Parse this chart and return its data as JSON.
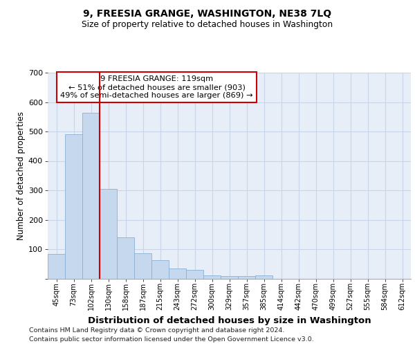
{
  "title": "9, FREESIA GRANGE, WASHINGTON, NE38 7LQ",
  "subtitle": "Size of property relative to detached houses in Washington",
  "xlabel": "Distribution of detached houses by size in Washington",
  "ylabel": "Number of detached properties",
  "categories": [
    "45sqm",
    "73sqm",
    "102sqm",
    "130sqm",
    "158sqm",
    "187sqm",
    "215sqm",
    "243sqm",
    "272sqm",
    "300sqm",
    "329sqm",
    "357sqm",
    "385sqm",
    "414sqm",
    "442sqm",
    "470sqm",
    "499sqm",
    "527sqm",
    "555sqm",
    "584sqm",
    "612sqm"
  ],
  "values": [
    84,
    490,
    563,
    305,
    140,
    85,
    63,
    35,
    30,
    10,
    8,
    8,
    10,
    0,
    0,
    0,
    0,
    0,
    0,
    0,
    0
  ],
  "bar_color": "#c5d8ee",
  "bar_edge_color": "#8ab0d4",
  "grid_color": "#c8d4e8",
  "background_color": "#e8eef8",
  "vline_color": "#cc0000",
  "vline_x_index": 2,
  "annotation_lines": [
    "9 FREESIA GRANGE: 119sqm",
    "← 51% of detached houses are smaller (903)",
    "49% of semi-detached houses are larger (869) →"
  ],
  "annotation_box_facecolor": "#ffffff",
  "annotation_box_edgecolor": "#cc0000",
  "ylim": [
    0,
    700
  ],
  "yticks": [
    0,
    100,
    200,
    300,
    400,
    500,
    600,
    700
  ],
  "footer_line1": "Contains HM Land Registry data © Crown copyright and database right 2024.",
  "footer_line2": "Contains public sector information licensed under the Open Government Licence v3.0."
}
